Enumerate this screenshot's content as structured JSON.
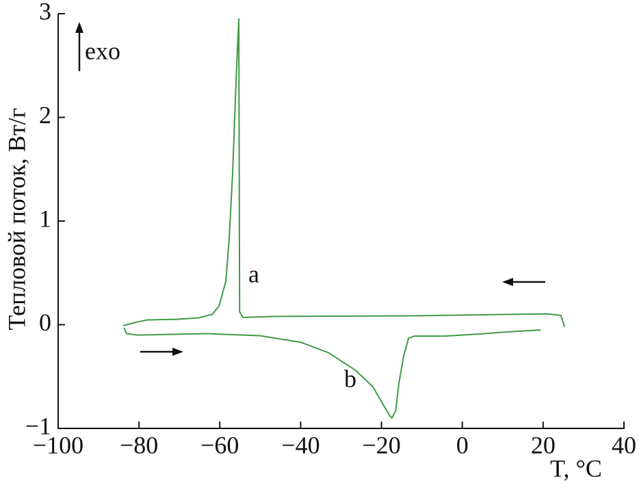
{
  "chart_data": {
    "type": "line",
    "x_label": "T, °C",
    "y_label": "Тепловой поток, Вт/г",
    "annotations": [
      "exo",
      "a",
      "b"
    ],
    "xlim": [
      -100,
      40
    ],
    "xticks": [
      {
        "value": -100,
        "label": "−100"
      },
      {
        "value": -80,
        "label": "−80"
      },
      {
        "value": -60,
        "label": "−60"
      },
      {
        "value": -40,
        "label": "−40"
      },
      {
        "value": -20,
        "label": "−20"
      },
      0,
      20,
      40
    ],
    "ylim": [
      -1,
      3
    ],
    "yticks": [
      {
        "value": -1,
        "label": "−1"
      },
      0,
      1,
      2,
      3
    ],
    "series": [
      {
        "color": "#3f9a45",
        "x": [
          25.3,
          24.4,
          21,
          -12.8,
          -46.7,
          -54.3,
          -55.1,
          -55.3,
          -56,
          -56.8,
          -57.7,
          -58.5,
          -60.2,
          -61.9,
          -65.3,
          -70.4,
          -78,
          -80.5,
          -83.1,
          -83.9
        ],
        "values": [
          -0.02,
          0.09,
          0.105,
          0.086,
          0.08,
          0.07,
          0.125,
          2.95,
          2.34,
          1.48,
          0.82,
          0.42,
          0.18,
          0.1,
          0.066,
          0.053,
          0.046,
          0.026,
          0,
          -0.01
        ]
      },
      {
        "color": "#3f9a45",
        "x": [
          -83.7,
          -83.1,
          -80.5,
          -63.6,
          -50.1,
          -39.9,
          -33.1,
          -26.4,
          -22.1,
          -19.6,
          -17.9,
          -17.4,
          -16.5,
          -15.7,
          -14.5,
          -13.3,
          -11.97,
          -4.35,
          4.1,
          10.9,
          19.4
        ],
        "values": [
          -0.03,
          -0.085,
          -0.1,
          -0.086,
          -0.106,
          -0.17,
          -0.27,
          -0.44,
          -0.6,
          -0.77,
          -0.88,
          -0.9,
          -0.83,
          -0.57,
          -0.3,
          -0.13,
          -0.11,
          -0.11,
          -0.09,
          -0.07,
          -0.05
        ]
      }
    ]
  }
}
